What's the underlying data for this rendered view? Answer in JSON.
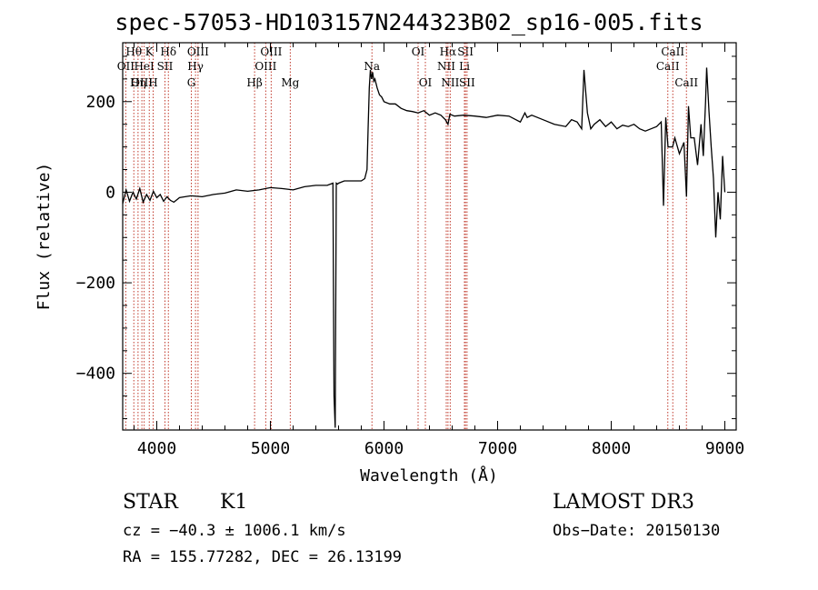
{
  "chart_data": {
    "type": "line",
    "title": "spec-57053-HD103157N244323B02_sp16-005.fits",
    "xlabel": "Wavelength (Å)",
    "ylabel": "Flux (relative)",
    "xlim": [
      3700,
      9100
    ],
    "ylim": [
      -525,
      330
    ],
    "x_ticks": [
      4000,
      5000,
      6000,
      7000,
      8000,
      9000
    ],
    "y_ticks": [
      -400,
      -200,
      0,
      200
    ],
    "x_tick_labels": [
      "4000",
      "5000",
      "6000",
      "7000",
      "8000",
      "9000"
    ],
    "y_tick_labels": [
      "−400",
      "−200",
      "0",
      "200"
    ],
    "series": [
      {
        "name": "flux",
        "x": [
          3700,
          3730,
          3760,
          3790,
          3820,
          3850,
          3880,
          3910,
          3940,
          3970,
          4000,
          4030,
          4060,
          4090,
          4120,
          4150,
          4200,
          4300,
          4400,
          4500,
          4600,
          4700,
          4800,
          4900,
          5000,
          5100,
          5200,
          5300,
          5400,
          5500,
          5550,
          5560,
          5570,
          5580,
          5590,
          5600,
          5650,
          5700,
          5750,
          5800,
          5830,
          5850,
          5860,
          5870,
          5880,
          5890,
          5900,
          5910,
          5920,
          5940,
          5960,
          5980,
          6000,
          6050,
          6100,
          6150,
          6200,
          6250,
          6300,
          6350,
          6400,
          6450,
          6500,
          6540,
          6563,
          6580,
          6620,
          6700,
          6800,
          6900,
          7000,
          7100,
          7200,
          7240,
          7260,
          7300,
          7400,
          7500,
          7600,
          7650,
          7700,
          7740,
          7760,
          7790,
          7820,
          7850,
          7900,
          7950,
          8000,
          8050,
          8100,
          8150,
          8200,
          8250,
          8300,
          8350,
          8400,
          8440,
          8460,
          8480,
          8500,
          8540,
          8560,
          8600,
          8640,
          8662,
          8680,
          8700,
          8730,
          8760,
          8790,
          8810,
          8830,
          8840,
          8860,
          8880,
          8900,
          8920,
          8940,
          8960,
          8980,
          9000
        ],
        "y": [
          -25,
          5,
          -20,
          0,
          -15,
          8,
          -22,
          -5,
          -18,
          2,
          -12,
          -5,
          -20,
          -10,
          -18,
          -22,
          -12,
          -8,
          -10,
          -5,
          -2,
          5,
          2,
          5,
          10,
          8,
          5,
          12,
          15,
          15,
          20,
          -450,
          -520,
          20,
          18,
          20,
          25,
          25,
          25,
          25,
          30,
          50,
          140,
          230,
          270,
          250,
          265,
          245,
          250,
          230,
          215,
          210,
          200,
          195,
          195,
          185,
          180,
          178,
          175,
          180,
          170,
          175,
          170,
          160,
          150,
          172,
          168,
          170,
          168,
          165,
          170,
          168,
          155,
          175,
          165,
          170,
          160,
          150,
          145,
          160,
          155,
          140,
          270,
          175,
          140,
          150,
          160,
          145,
          155,
          140,
          148,
          145,
          150,
          140,
          135,
          140,
          145,
          155,
          -30,
          165,
          100,
          100,
          120,
          85,
          110,
          -10,
          190,
          120,
          120,
          60,
          150,
          80,
          200,
          275,
          180,
          100,
          30,
          -100,
          0,
          -60,
          80,
          0
        ]
      }
    ],
    "spectral_lines": [
      {
        "label": "Hθ",
        "wavelength": 3798,
        "row": 1
      },
      {
        "label": "OII",
        "wavelength": 3727,
        "row": 2
      },
      {
        "label": "OIII",
        "wavelength": 3869,
        "row": 3
      },
      {
        "label": "Hη",
        "wavelength": 3835,
        "row": 3
      },
      {
        "label": "HeI",
        "wavelength": 3889,
        "row": 2
      },
      {
        "label": "K",
        "wavelength": 3934,
        "row": 1
      },
      {
        "label": "H",
        "wavelength": 3968,
        "row": 3
      },
      {
        "label": "SII",
        "wavelength": 4072,
        "row": 2
      },
      {
        "label": "Hδ",
        "wavelength": 4102,
        "row": 1
      },
      {
        "label": "G",
        "wavelength": 4304,
        "row": 3
      },
      {
        "label": "Hγ",
        "wavelength": 4341,
        "row": 2
      },
      {
        "label": "OIII",
        "wavelength": 4363,
        "row": 1
      },
      {
        "label": "Hβ",
        "wavelength": 4861,
        "row": 3
      },
      {
        "label": "OIII",
        "wavelength": 4959,
        "row": 2
      },
      {
        "label": "OIII",
        "wavelength": 5007,
        "row": 1
      },
      {
        "label": "Mg",
        "wavelength": 5175,
        "row": 3
      },
      {
        "label": "Na",
        "wavelength": 5894,
        "row": 2
      },
      {
        "label": "OI",
        "wavelength": 6300,
        "row": 1
      },
      {
        "label": "OI",
        "wavelength": 6364,
        "row": 3
      },
      {
        "label": "NII",
        "wavelength": 6548,
        "row": 2
      },
      {
        "label": "Hα",
        "wavelength": 6563,
        "row": 1
      },
      {
        "label": "NII",
        "wavelength": 6583,
        "row": 3
      },
      {
        "label": "SII",
        "wavelength": 6717,
        "row": 1
      },
      {
        "label": "Li",
        "wavelength": 6708,
        "row": 2
      },
      {
        "label": "SII",
        "wavelength": 6731,
        "row": 3
      },
      {
        "label": "CaII",
        "wavelength": 8498,
        "row": 2
      },
      {
        "label": "CaII",
        "wavelength": 8542,
        "row": 1
      },
      {
        "label": "CaII",
        "wavelength": 8662,
        "row": 3
      }
    ]
  },
  "info": {
    "class": "STAR",
    "subclass": "K1",
    "survey": "LAMOST DR3",
    "cz": "cz = −40.3 ± 1006.1 km/s",
    "obs_date": "Obs−Date: 20150130",
    "coords": "RA = 155.77282, DEC =  26.13199"
  }
}
